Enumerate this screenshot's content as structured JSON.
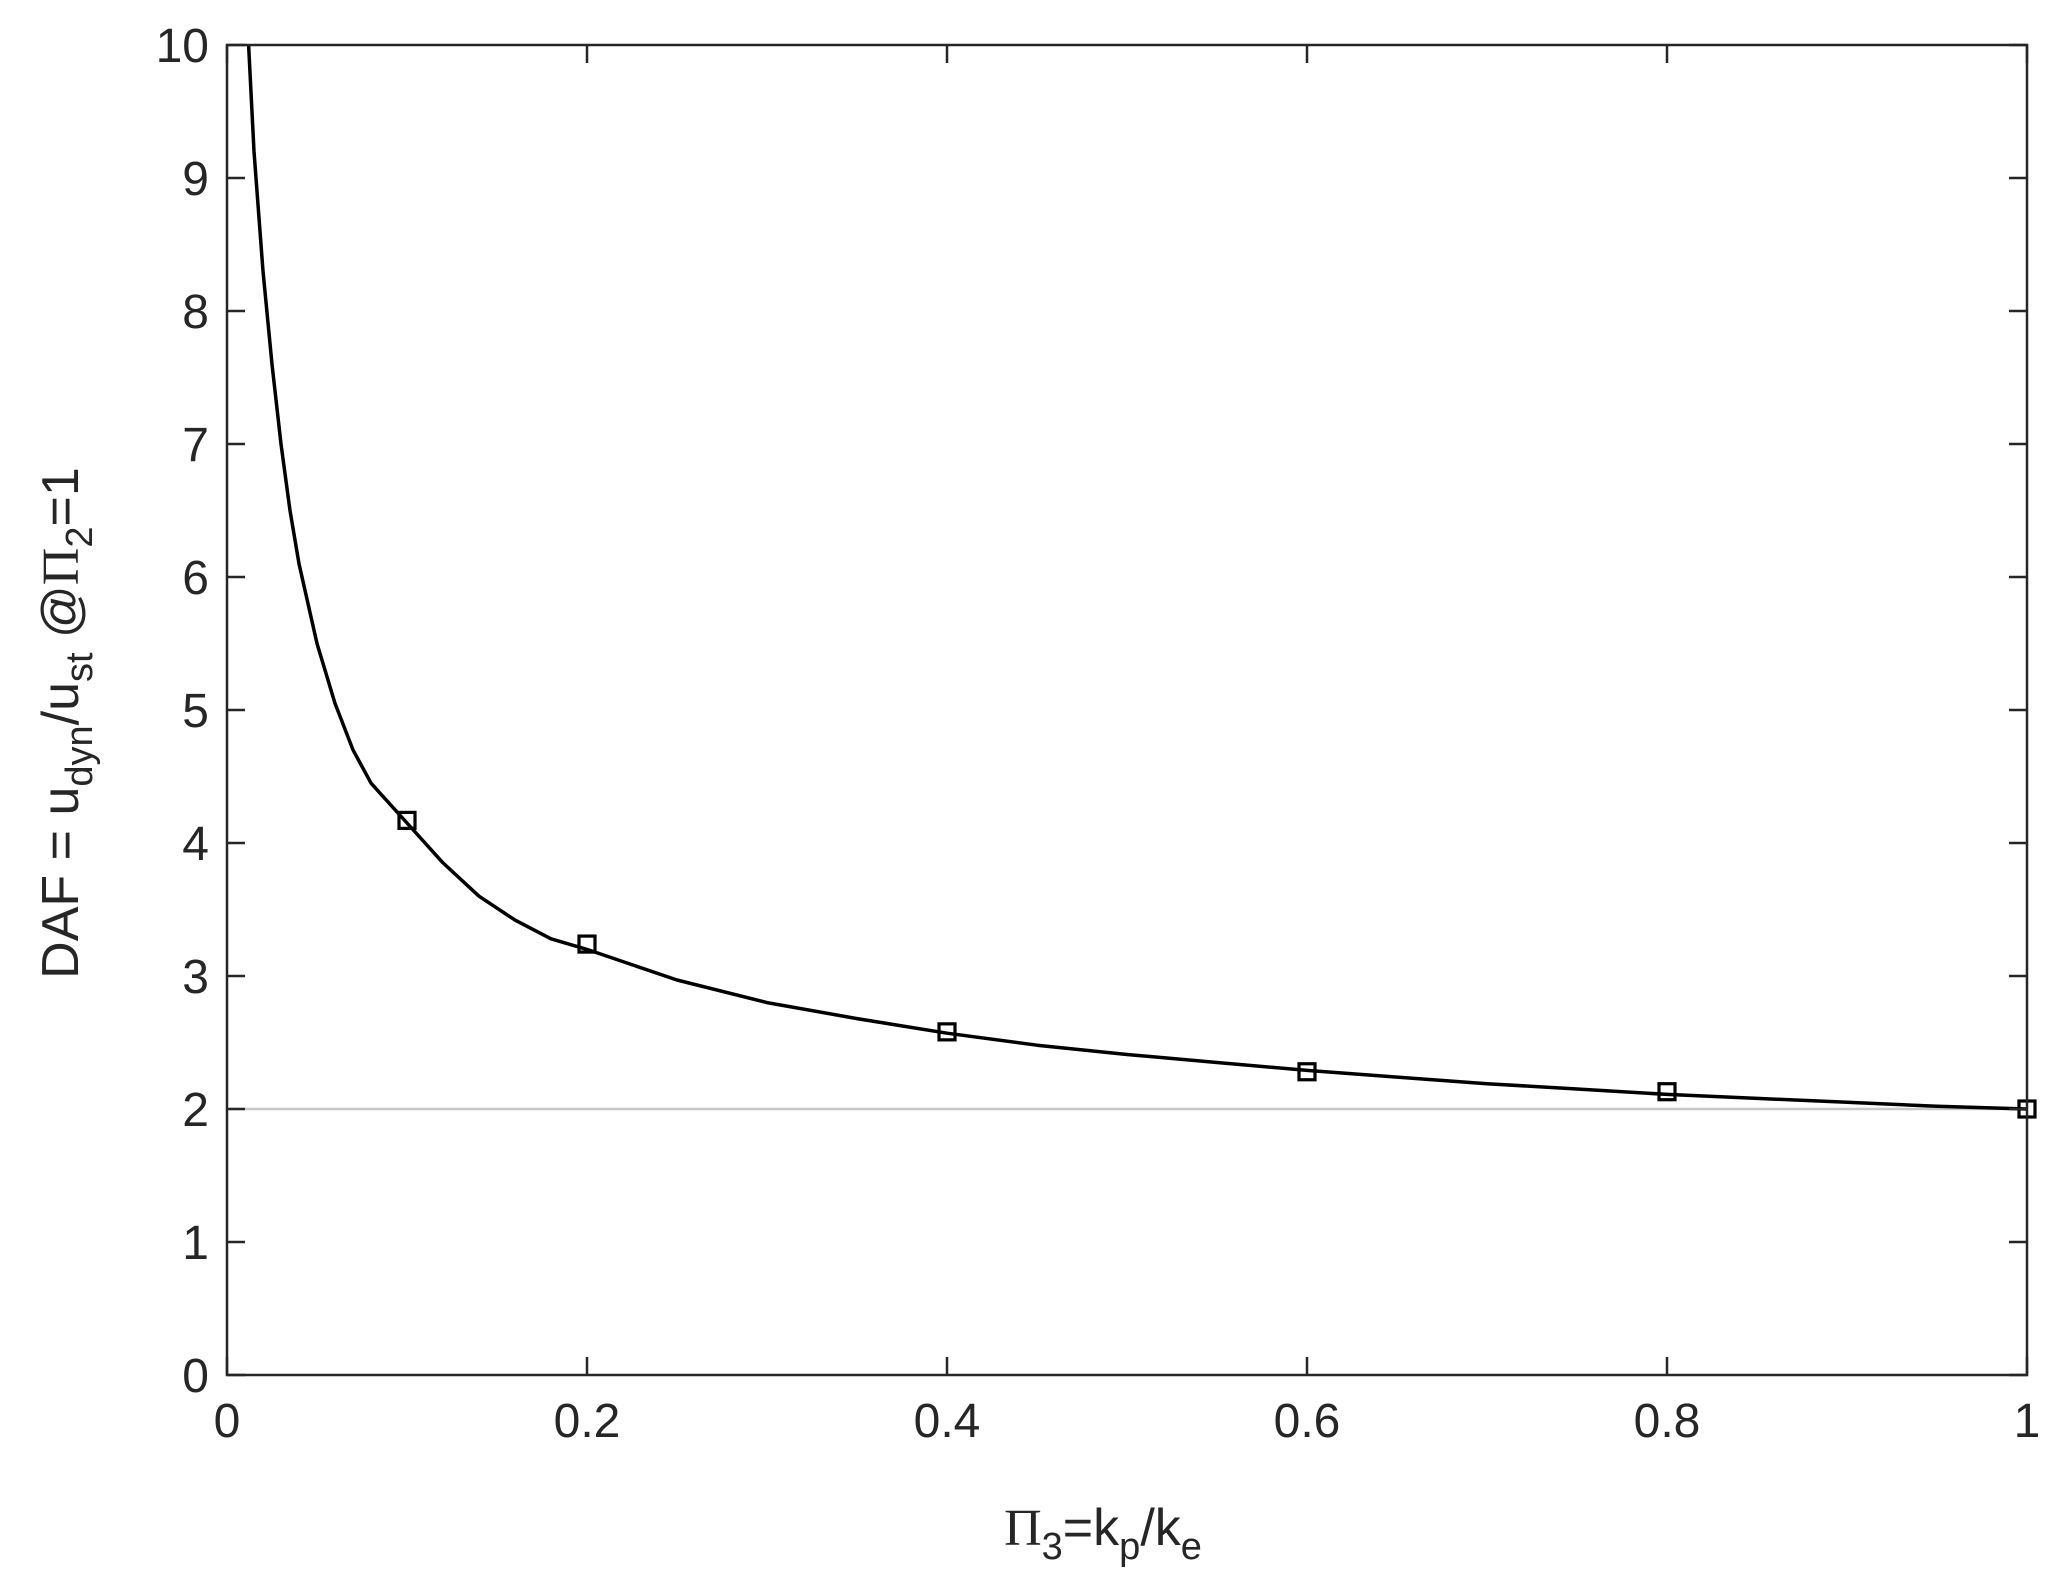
{
  "chart_data": {
    "type": "line",
    "xlabel": {
      "pi_symbol": "Π",
      "pi_subscript": "3",
      "eq": "=k",
      "p_subscript": "p",
      "slash_k": "/k",
      "e_subscript": "e"
    },
    "ylabel": {
      "prefix": "DAF = u",
      "dyn_subscript": "dyn",
      "slash_u": "/u",
      "st_subscript": "st",
      "at": " @",
      "pi_symbol": "Π",
      "pi_subscript": "2",
      "eq_one": "=1"
    },
    "xlim": [
      0,
      1
    ],
    "ylim": [
      0,
      10
    ],
    "xticks": [
      0,
      0.2,
      0.4,
      0.6,
      0.8,
      1
    ],
    "xtick_labels": [
      "0",
      "0.2",
      "0.4",
      "0.6",
      "0.8",
      "1"
    ],
    "yticks": [
      0,
      1,
      2,
      3,
      4,
      5,
      6,
      7,
      8,
      9,
      10
    ],
    "ytick_labels": [
      "0",
      "1",
      "2",
      "3",
      "4",
      "5",
      "6",
      "7",
      "8",
      "9",
      "10"
    ],
    "grid": false,
    "series": [
      {
        "style": "curve",
        "color": "#000000",
        "x": [
          0.012,
          0.015,
          0.02,
          0.025,
          0.03,
          0.035,
          0.04,
          0.05,
          0.06,
          0.07,
          0.08,
          0.09,
          0.1,
          0.12,
          0.14,
          0.16,
          0.18,
          0.2,
          0.25,
          0.3,
          0.35,
          0.4,
          0.45,
          0.5,
          0.55,
          0.6,
          0.65,
          0.7,
          0.75,
          0.8,
          0.85,
          0.9,
          0.95,
          1.0
        ],
        "y": [
          10.0,
          9.2,
          8.3,
          7.6,
          7.0,
          6.5,
          6.1,
          5.5,
          5.05,
          4.7,
          4.45,
          4.3,
          4.15,
          3.85,
          3.6,
          3.42,
          3.28,
          3.2,
          2.97,
          2.8,
          2.68,
          2.57,
          2.48,
          2.41,
          2.35,
          2.29,
          2.24,
          2.19,
          2.15,
          2.11,
          2.08,
          2.05,
          2.02,
          2.0
        ]
      },
      {
        "style": "markers",
        "marker": "square",
        "color": "#000000",
        "x": [
          0.1,
          0.2,
          0.4,
          0.6,
          0.8,
          1.0
        ],
        "y": [
          4.17,
          3.24,
          2.58,
          2.28,
          2.13,
          2.0
        ]
      }
    ],
    "reference_line": {
      "y": 2,
      "color": "#c8c8c8"
    }
  }
}
